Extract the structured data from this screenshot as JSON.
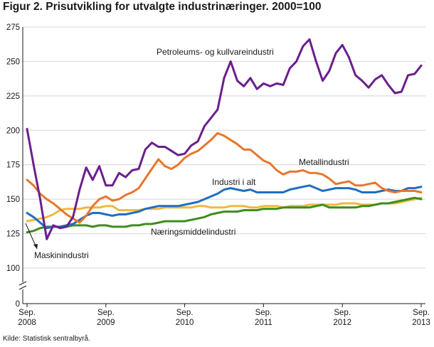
{
  "title": "Figur 2. Prisutvikling for utvalgte industrinæringer. 2000=100",
  "source": "Kilde: Statistisk sentralbyrå.",
  "chart_data": {
    "type": "line",
    "title": "Figur 2. Prisutvikling for utvalgte industrinæringer. 2000=100",
    "xlabel": "",
    "ylabel": "",
    "ylim": [
      0,
      275
    ],
    "yticks": [
      0,
      100,
      125,
      150,
      175,
      200,
      225,
      250,
      275
    ],
    "axis_break": true,
    "grid": true,
    "x_ticks": [
      {
        "index": 0,
        "line1": "Sep.",
        "line2": "2008"
      },
      {
        "index": 12,
        "line1": "Sep.",
        "line2": "2009"
      },
      {
        "index": 24,
        "line1": "Sep.",
        "line2": "2010"
      },
      {
        "index": 36,
        "line1": "Sep.",
        "line2": "2011"
      },
      {
        "index": 48,
        "line1": "Sep.",
        "line2": "2012"
      },
      {
        "index": 60,
        "line1": "Sep.",
        "line2": "2013"
      }
    ],
    "n_points": 61,
    "series": [
      {
        "name": "Petroleums- og kullvareindustri",
        "color": "#6a1f8c",
        "values": [
          201,
          175,
          150,
          121,
          131,
          129,
          130,
          137,
          157,
          173,
          164,
          174,
          160,
          160,
          169,
          166,
          171,
          172,
          186,
          191,
          188,
          188,
          185,
          182,
          183,
          189,
          192,
          203,
          209,
          215,
          238,
          250,
          236,
          232,
          238,
          230,
          234,
          232,
          234,
          233,
          245,
          250,
          261,
          266,
          250,
          236,
          243,
          256,
          262,
          253,
          240,
          236,
          231,
          237,
          240,
          233,
          227,
          228,
          240,
          241,
          247
        ]
      },
      {
        "name": "Metallindustri",
        "color": "#e8762d",
        "values": [
          164,
          160,
          154,
          150,
          147,
          143,
          139,
          136,
          133,
          138,
          145,
          150,
          152,
          149,
          150,
          153,
          155,
          158,
          165,
          172,
          179,
          174,
          172,
          175,
          180,
          183,
          185,
          189,
          193,
          198,
          196,
          193,
          190,
          186,
          186,
          182,
          178,
          176,
          171,
          168,
          170,
          170,
          171,
          169,
          169,
          168,
          165,
          161,
          162,
          163,
          160,
          160,
          161,
          162,
          158,
          156,
          155,
          156,
          156,
          156,
          155
        ]
      },
      {
        "name": "Industri i alt",
        "color": "#1f6fbf",
        "values": [
          140,
          137,
          133,
          129,
          130,
          130,
          131,
          132,
          135,
          138,
          140,
          140,
          139,
          138,
          139,
          139,
          140,
          141,
          143,
          144,
          145,
          145,
          145,
          145,
          146,
          147,
          148,
          150,
          152,
          154,
          157,
          158,
          157,
          156,
          157,
          155,
          155,
          155,
          155,
          155,
          157,
          158,
          159,
          160,
          158,
          156,
          157,
          158,
          158,
          158,
          157,
          155,
          155,
          155,
          156,
          157,
          156,
          156,
          158,
          158,
          159
        ]
      },
      {
        "name": "Maskinindustri",
        "color": "#f0b93a",
        "values": [
          134,
          135,
          136,
          137,
          139,
          142,
          143,
          143,
          143,
          144,
          144,
          144,
          145,
          145,
          142,
          142,
          142,
          142,
          143,
          143,
          143,
          144,
          144,
          144,
          144,
          144,
          145,
          145,
          144,
          144,
          144,
          145,
          145,
          145,
          144,
          144,
          145,
          145,
          145,
          144,
          145,
          145,
          145,
          146,
          146,
          146,
          146,
          146,
          147,
          147,
          147,
          146,
          146,
          146,
          147,
          147,
          147,
          148,
          149,
          150,
          151
        ]
      },
      {
        "name": "Næringsmiddelindustri",
        "color": "#3f8c1f",
        "values": [
          126,
          127,
          129,
          130,
          130,
          130,
          130,
          131,
          131,
          131,
          130,
          131,
          131,
          130,
          130,
          130,
          131,
          131,
          132,
          132,
          133,
          134,
          134,
          134,
          134,
          135,
          136,
          137,
          139,
          140,
          141,
          141,
          141,
          142,
          142,
          142,
          143,
          143,
          143,
          144,
          144,
          144,
          144,
          144,
          145,
          146,
          144,
          144,
          144,
          144,
          144,
          145,
          145,
          146,
          147,
          147,
          148,
          149,
          150,
          151,
          150
        ]
      }
    ],
    "annotations": [
      {
        "text": "Petroleums- og kullvareindustri",
        "series": "Petroleums- og kullvareindustri"
      },
      {
        "text": "Metallindustri",
        "series": "Metallindustri"
      },
      {
        "text": "Industri i alt",
        "series": "Industri i alt"
      },
      {
        "text": "Næringsmiddelindustri",
        "series": "Næringsmiddelindustri"
      },
      {
        "text": "Maskinindustri",
        "series": "Maskinindustri"
      }
    ]
  }
}
